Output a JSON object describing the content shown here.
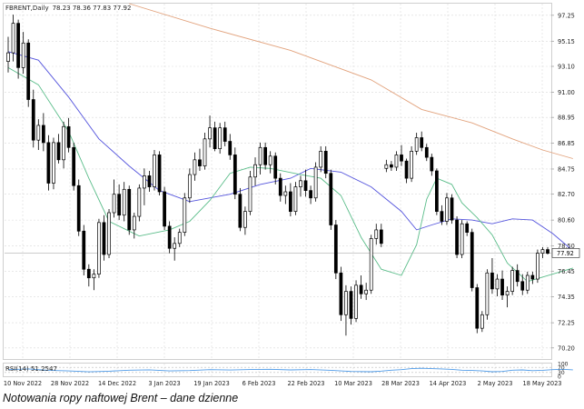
{
  "header": {
    "symbol": "FBRENT",
    "timeframe": "Daily",
    "ohlc": "78.23 78.36 77.83 77.92"
  },
  "caption": "Notowania ropy naftowej Brent – dane dzienne",
  "colors": {
    "grid": "#d9d9d9",
    "text": "#222222",
    "ma_fast": "#5bbd8a",
    "ma_mid": "#5555dd",
    "ma_slow": "#e2a27c",
    "rsi": "#4f9be8",
    "candle": "#000000",
    "current_line": "#9a9a9a"
  },
  "chart_data": [
    {
      "type": "candlestick",
      "title": "",
      "price_axis_ticks": [
        "97.25",
        "95.15",
        "93.10",
        "91.00",
        "88.95",
        "86.85",
        "84.75",
        "82.70",
        "80.60",
        "78.50",
        "76.45",
        "74.35",
        "72.25",
        "70.20"
      ],
      "current_price": "77.92",
      "ylim": [
        69.3,
        98.2
      ],
      "x_tick_labels": [
        "10 Nov 2022",
        "28 Nov 2022",
        "14 Dec 2022",
        "3 Jan 2023",
        "19 Jan 2023",
        "6 Feb 2023",
        "22 Feb 2023",
        "10 Mar 2023",
        "28 Mar 2023",
        "14 Apr 2023",
        "2 May 2023",
        "18 May 2023"
      ],
      "ohlc": [
        [
          93.5,
          95.5,
          92.6,
          94.2
        ],
        [
          94.2,
          97.3,
          93.5,
          96.6
        ],
        [
          96.6,
          96.9,
          92.1,
          93.0
        ],
        [
          93.0,
          95.9,
          92.5,
          95.0
        ],
        [
          95.0,
          95.3,
          89.8,
          90.4
        ],
        [
          90.4,
          91.2,
          86.5,
          87.1
        ],
        [
          87.1,
          88.8,
          86.3,
          88.3
        ],
        [
          88.3,
          89.3,
          86.2,
          86.9
        ],
        [
          86.9,
          87.5,
          83.0,
          83.6
        ],
        [
          83.6,
          87.3,
          83.1,
          86.9
        ],
        [
          86.9,
          87.6,
          85.2,
          85.5
        ],
        [
          85.5,
          88.6,
          84.8,
          88.2
        ],
        [
          88.2,
          88.9,
          86.1,
          86.5
        ],
        [
          86.5,
          86.9,
          83.0,
          83.4
        ],
        [
          83.4,
          83.9,
          79.3,
          79.7
        ],
        [
          79.7,
          80.2,
          76.1,
          76.6
        ],
        [
          76.6,
          77.0,
          75.2,
          75.9
        ],
        [
          75.9,
          76.6,
          74.9,
          76.2
        ],
        [
          76.2,
          80.7,
          75.9,
          80.4
        ],
        [
          80.4,
          81.0,
          77.3,
          77.8
        ],
        [
          77.8,
          81.5,
          77.5,
          81.2
        ],
        [
          81.2,
          83.9,
          80.8,
          82.7
        ],
        [
          82.7,
          83.5,
          80.6,
          81.0
        ],
        [
          81.0,
          83.7,
          80.5,
          83.1
        ],
        [
          83.1,
          83.4,
          79.4,
          79.8
        ],
        [
          79.8,
          81.2,
          79.1,
          80.9
        ],
        [
          80.9,
          83.5,
          80.5,
          83.2
        ],
        [
          83.2,
          84.8,
          81.8,
          84.2
        ],
        [
          84.2,
          84.6,
          82.9,
          83.3
        ],
        [
          83.3,
          86.3,
          83.0,
          85.9
        ],
        [
          85.9,
          86.2,
          82.6,
          82.9
        ],
        [
          82.9,
          83.3,
          79.8,
          80.1
        ],
        [
          80.1,
          80.5,
          77.9,
          78.3
        ],
        [
          78.3,
          79.2,
          77.3,
          78.7
        ],
        [
          78.7,
          79.9,
          78.4,
          79.6
        ],
        [
          79.6,
          82.8,
          79.3,
          82.4
        ],
        [
          82.4,
          84.8,
          82.0,
          84.3
        ],
        [
          84.3,
          86.1,
          83.8,
          85.5
        ],
        [
          85.5,
          86.4,
          84.6,
          85.0
        ],
        [
          85.0,
          87.7,
          84.7,
          87.2
        ],
        [
          87.2,
          89.1,
          86.5,
          88.1
        ],
        [
          88.1,
          88.6,
          86.2,
          86.4
        ],
        [
          86.4,
          88.5,
          86.0,
          88.1
        ],
        [
          88.1,
          88.6,
          86.6,
          87.0
        ],
        [
          87.0,
          87.6,
          85.5,
          85.9
        ],
        [
          85.9,
          86.5,
          82.3,
          82.7
        ],
        [
          82.7,
          83.2,
          79.7,
          80.0
        ],
        [
          80.0,
          81.7,
          79.4,
          81.3
        ],
        [
          81.3,
          84.6,
          81.0,
          84.1
        ],
        [
          84.1,
          85.7,
          83.4,
          85.1
        ],
        [
          85.1,
          86.9,
          84.3,
          86.5
        ],
        [
          86.5,
          86.9,
          84.7,
          85.1
        ],
        [
          85.1,
          86.2,
          84.4,
          85.8
        ],
        [
          85.8,
          86.1,
          83.5,
          84.0
        ],
        [
          84.0,
          84.4,
          82.1,
          82.6
        ],
        [
          82.6,
          83.4,
          81.9,
          82.9
        ],
        [
          82.9,
          83.6,
          80.9,
          81.3
        ],
        [
          81.3,
          83.7,
          81.0,
          83.3
        ],
        [
          83.3,
          84.2,
          82.5,
          83.8
        ],
        [
          83.8,
          84.7,
          82.5,
          83.0
        ],
        [
          83.0,
          83.4,
          81.9,
          82.4
        ],
        [
          82.4,
          85.3,
          82.1,
          84.9
        ],
        [
          84.9,
          86.6,
          84.5,
          86.2
        ],
        [
          86.2,
          86.6,
          84.0,
          84.4
        ],
        [
          84.4,
          84.7,
          79.8,
          80.2
        ],
        [
          80.2,
          80.6,
          75.8,
          76.3
        ],
        [
          76.3,
          76.8,
          72.4,
          72.9
        ],
        [
          72.9,
          75.3,
          71.2,
          74.8
        ],
        [
          74.8,
          75.2,
          72.1,
          72.6
        ],
        [
          72.6,
          75.7,
          72.3,
          75.3
        ],
        [
          75.3,
          76.1,
          74.2,
          74.6
        ],
        [
          74.6,
          75.5,
          74.1,
          74.9
        ],
        [
          74.9,
          79.4,
          74.6,
          79.1
        ],
        [
          79.1,
          80.3,
          78.6,
          79.8
        ],
        [
          79.8,
          80.3,
          78.4,
          78.7
        ],
        [
          84.8,
          85.5,
          84.5,
          85.1
        ],
        [
          85.1,
          85.4,
          84.6,
          84.9
        ],
        [
          84.9,
          86.2,
          84.6,
          85.9
        ],
        [
          85.9,
          86.7,
          85.0,
          85.4
        ],
        [
          85.4,
          85.6,
          83.6,
          84.0
        ],
        [
          84.0,
          86.6,
          83.7,
          86.2
        ],
        [
          86.2,
          87.7,
          85.9,
          87.3
        ],
        [
          87.3,
          87.8,
          86.2,
          86.5
        ],
        [
          86.5,
          86.8,
          85.4,
          85.7
        ],
        [
          85.7,
          86.0,
          84.2,
          84.6
        ],
        [
          84.6,
          84.8,
          81.0,
          81.3
        ],
        [
          81.3,
          81.8,
          80.2,
          80.5
        ],
        [
          80.5,
          82.8,
          80.2,
          82.4
        ],
        [
          82.4,
          82.7,
          80.3,
          80.6
        ],
        [
          80.6,
          80.9,
          77.5,
          77.8
        ],
        [
          77.8,
          80.6,
          77.5,
          80.3
        ],
        [
          80.3,
          80.5,
          79.3,
          79.6
        ],
        [
          79.6,
          79.9,
          74.8,
          75.1
        ],
        [
          75.1,
          75.4,
          71.4,
          71.8
        ],
        [
          71.8,
          73.2,
          71.5,
          72.9
        ],
        [
          72.9,
          76.6,
          72.5,
          76.3
        ],
        [
          76.3,
          77.5,
          74.6,
          75.0
        ],
        [
          75.0,
          76.2,
          74.4,
          75.8
        ],
        [
          75.8,
          76.5,
          74.1,
          74.5
        ],
        [
          74.5,
          75.2,
          73.5,
          74.8
        ],
        [
          74.8,
          76.8,
          74.5,
          76.5
        ],
        [
          76.5,
          77.0,
          75.2,
          75.6
        ],
        [
          75.6,
          76.2,
          74.5,
          74.9
        ],
        [
          74.9,
          76.4,
          74.6,
          76.1
        ],
        [
          76.1,
          76.4,
          75.4,
          75.8
        ],
        [
          75.8,
          78.2,
          75.5,
          77.9
        ],
        [
          77.9,
          78.4,
          77.5,
          78.2
        ],
        [
          78.2,
          78.4,
          77.8,
          77.9
        ]
      ],
      "ma_fast": [
        [
          0,
          93.0
        ],
        [
          6,
          91.6
        ],
        [
          12,
          87.8
        ],
        [
          16,
          84.0
        ],
        [
          20,
          80.5
        ],
        [
          26,
          79.3
        ],
        [
          32,
          79.8
        ],
        [
          36,
          80.5
        ],
        [
          40,
          82.2
        ],
        [
          44,
          84.4
        ],
        [
          48,
          84.9
        ],
        [
          52,
          84.8
        ],
        [
          58,
          84.3
        ],
        [
          62,
          84.0
        ],
        [
          66,
          82.6
        ],
        [
          70,
          79.2
        ],
        [
          74,
          76.6
        ],
        [
          78,
          76.1
        ],
        [
          81,
          78.6
        ],
        [
          83,
          82.3
        ],
        [
          85,
          84.0
        ],
        [
          88,
          83.5
        ],
        [
          90,
          82.0
        ],
        [
          93,
          80.8
        ],
        [
          96,
          79.4
        ],
        [
          99,
          77.1
        ],
        [
          103,
          75.6
        ],
        [
          108,
          76.2
        ],
        [
          112,
          76.7
        ]
      ],
      "ma_mid": [
        [
          0,
          94.3
        ],
        [
          6,
          93.6
        ],
        [
          12,
          90.6
        ],
        [
          18,
          87.2
        ],
        [
          24,
          85.0
        ],
        [
          30,
          83.0
        ],
        [
          36,
          82.1
        ],
        [
          44,
          82.7
        ],
        [
          50,
          83.5
        ],
        [
          56,
          84.0
        ],
        [
          60,
          84.8
        ],
        [
          66,
          84.5
        ],
        [
          72,
          83.3
        ],
        [
          78,
          81.3
        ],
        [
          81,
          79.8
        ],
        [
          84,
          80.2
        ],
        [
          88,
          80.7
        ],
        [
          92,
          80.6
        ],
        [
          96,
          80.3
        ],
        [
          100,
          80.7
        ],
        [
          104,
          80.6
        ],
        [
          108,
          79.5
        ],
        [
          112,
          78.1
        ]
      ],
      "ma_slow": [
        [
          24,
          98.2
        ],
        [
          40,
          96.2
        ],
        [
          56,
          94.4
        ],
        [
          72,
          92.0
        ],
        [
          82,
          89.6
        ],
        [
          92,
          88.5
        ],
        [
          100,
          87.2
        ],
        [
          106,
          86.3
        ],
        [
          112,
          85.6
        ]
      ]
    },
    {
      "type": "line",
      "title": "",
      "label": "RSI(14) 51.2547",
      "ylim": [
        0,
        100
      ],
      "levels": [
        70,
        30
      ],
      "tick_labels": [
        "100",
        "70",
        "30",
        "0"
      ],
      "values": [
        [
          0,
          52
        ],
        [
          4,
          58
        ],
        [
          8,
          47
        ],
        [
          12,
          42
        ],
        [
          16,
          35
        ],
        [
          20,
          40
        ],
        [
          24,
          48
        ],
        [
          28,
          51
        ],
        [
          32,
          42
        ],
        [
          36,
          45
        ],
        [
          40,
          52
        ],
        [
          44,
          49
        ],
        [
          48,
          53
        ],
        [
          52,
          55
        ],
        [
          56,
          50
        ],
        [
          60,
          53
        ],
        [
          64,
          47
        ],
        [
          68,
          38
        ],
        [
          72,
          36
        ],
        [
          74,
          41
        ],
        [
          76,
          48
        ],
        [
          78,
          52
        ],
        [
          80,
          60
        ],
        [
          82,
          63
        ],
        [
          84,
          60
        ],
        [
          86,
          58
        ],
        [
          88,
          54
        ],
        [
          90,
          48
        ],
        [
          92,
          46
        ],
        [
          94,
          42
        ],
        [
          96,
          36
        ],
        [
          98,
          38
        ],
        [
          100,
          48
        ],
        [
          102,
          50
        ],
        [
          104,
          44
        ],
        [
          106,
          47
        ],
        [
          108,
          52
        ],
        [
          110,
          55
        ],
        [
          112,
          51
        ]
      ]
    }
  ]
}
